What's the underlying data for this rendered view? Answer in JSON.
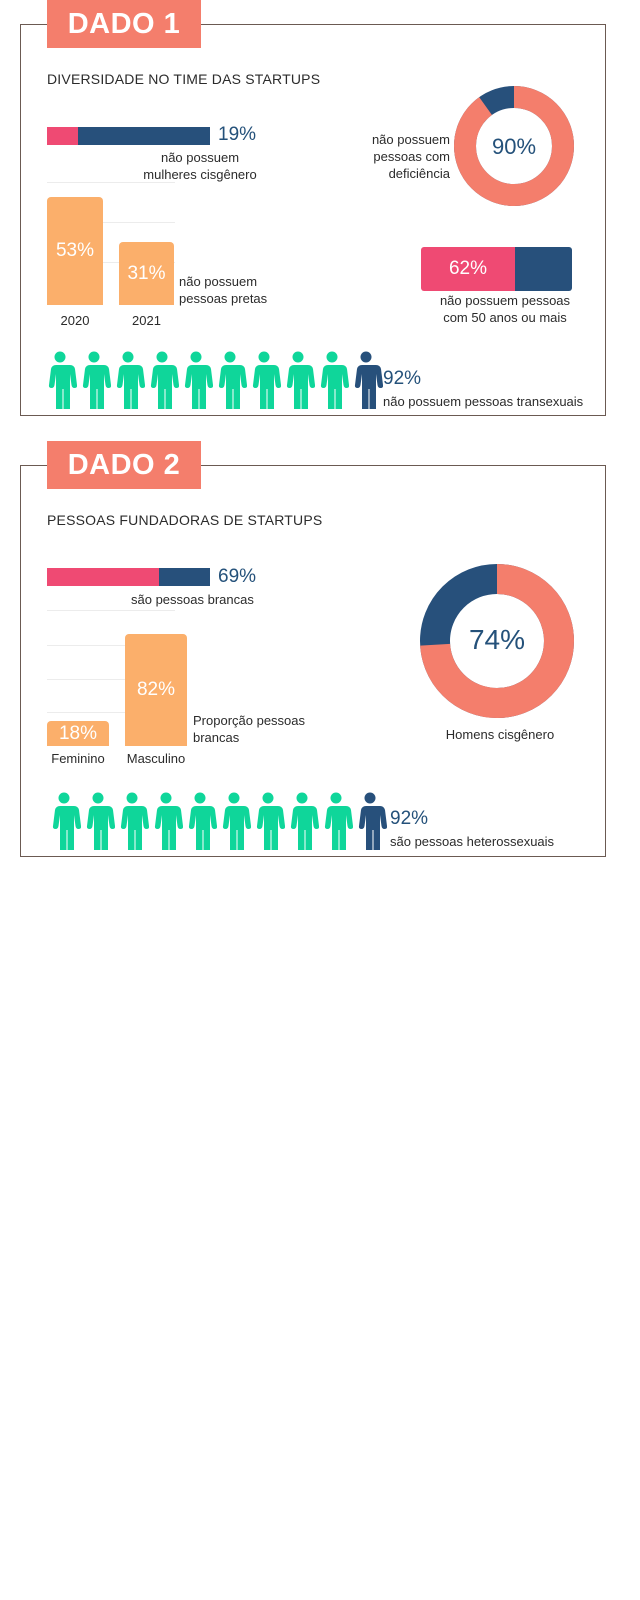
{
  "colors": {
    "coral": "#f47e6c",
    "pink": "#ef4a73",
    "navy": "#27507b",
    "orange": "#fbaf6b",
    "green": "#0fd69a"
  },
  "dado1": {
    "tab": "DADO 1",
    "heading": "DIVERSIDADE NO TIME DAS STARTUPS",
    "mulheres": {
      "value": 19,
      "pct": "19%",
      "label_line1": "não possuem",
      "label_line2": "mulheres cisgênero"
    },
    "pretas": {
      "bars": [
        {
          "year": "2020",
          "value": 53,
          "pct": "53%"
        },
        {
          "year": "2021",
          "value": 31,
          "pct": "31%"
        }
      ],
      "label_line1": "não possuem",
      "label_line2": "pessoas pretas"
    },
    "deficiencia": {
      "value": 90,
      "pct": "90%",
      "label_line1": "não possuem",
      "label_line2": "pessoas com",
      "label_line3": "deficiência"
    },
    "idade": {
      "value": 62,
      "pct": "62%",
      "label_line1": "não possuem pessoas",
      "label_line2": "com 50 anos ou mais"
    },
    "trans": {
      "value": 92,
      "pct": "92%",
      "label": "não possuem pessoas transexuais",
      "icons_total": 10,
      "icons_highlight": 9
    }
  },
  "dado2": {
    "tab": "DADO 2",
    "heading": "PESSOAS FUNDADORAS DE STARTUPS",
    "brancas": {
      "value": 69,
      "pct": "69%",
      "label": "são pessoas brancas"
    },
    "proporcao": {
      "bars": [
        {
          "name": "Feminino",
          "value": 18,
          "pct": "18%"
        },
        {
          "name": "Masculino",
          "value": 82,
          "pct": "82%"
        }
      ],
      "label_line1": "Proporção pessoas",
      "label_line2": "brancas"
    },
    "homens": {
      "value": 74,
      "pct": "74%",
      "label": "Homens cisgênero"
    },
    "hetero": {
      "value": 92,
      "pct": "92%",
      "label": "são pessoas heterossexuais",
      "icons_total": 10,
      "icons_highlight": 9
    }
  },
  "chart_data": [
    {
      "type": "bar",
      "orientation": "horizontal",
      "title": "DIVERSIDADE NO TIME DAS STARTUPS",
      "values": [
        19
      ],
      "caption": "não possuem mulheres cisgênero"
    },
    {
      "type": "bar",
      "categories": [
        "2020",
        "2021"
      ],
      "values": [
        53,
        31
      ],
      "caption": "não possuem pessoas pretas"
    },
    {
      "type": "pie",
      "values": [
        90,
        10
      ],
      "caption": "não possuem pessoas com deficiência"
    },
    {
      "type": "bar",
      "orientation": "horizontal",
      "values": [
        62
      ],
      "caption": "não possuem pessoas com 50 anos ou mais"
    },
    {
      "type": "pictogram",
      "values": [
        92
      ],
      "caption": "não possuem pessoas transexuais"
    },
    {
      "type": "bar",
      "orientation": "horizontal",
      "title": "PESSOAS FUNDADORAS DE STARTUPS",
      "values": [
        69
      ],
      "caption": "são pessoas brancas"
    },
    {
      "type": "bar",
      "categories": [
        "Feminino",
        "Masculino"
      ],
      "values": [
        18,
        82
      ],
      "caption": "Proporção pessoas brancas"
    },
    {
      "type": "pie",
      "values": [
        74,
        26
      ],
      "caption": "Homens cisgênero"
    },
    {
      "type": "pictogram",
      "values": [
        92
      ],
      "caption": "são pessoas heterossexuais"
    }
  ]
}
